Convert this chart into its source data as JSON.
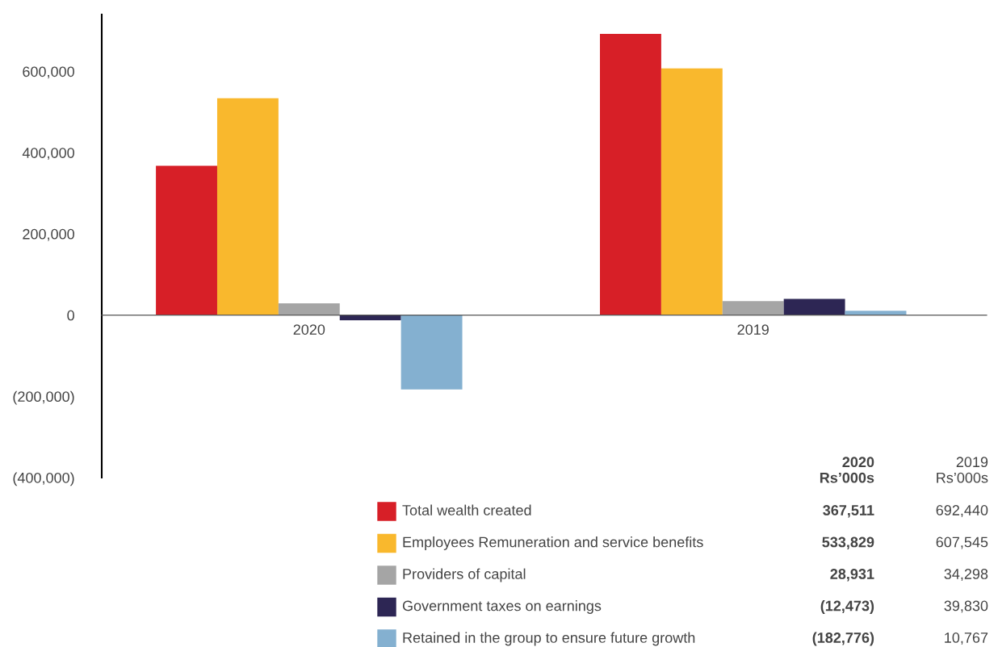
{
  "chart_data": {
    "type": "bar",
    "categories": [
      "2020",
      "2019"
    ],
    "series": [
      {
        "name": "Total wealth created",
        "color": "#d71f27",
        "values": [
          367511,
          692440
        ]
      },
      {
        "name": "Employees Remuneration and service benefits",
        "color": "#f9b82d",
        "values": [
          533829,
          607545
        ]
      },
      {
        "name": "Providers of capital",
        "color": "#a5a5a5",
        "values": [
          28931,
          34298
        ]
      },
      {
        "name": "Government taxes on earnings",
        "color": "#2d2654",
        "values": [
          -12473,
          39830
        ]
      },
      {
        "name": "Retained in the group to ensure future growth",
        "color": "#84b0d0",
        "values": [
          -182776,
          10767
        ]
      }
    ],
    "annotations": [
      "2020\nRs’000s",
      "2019\nRs’000s",
      "367,511",
      "692,440",
      "533,829",
      "607,545",
      "28,931",
      "34,298",
      "(12,473)",
      "39,830",
      "(182,776)",
      "10,767"
    ],
    "ylim": [
      -400000,
      740000
    ],
    "yticks": [
      {
        "value": -400000,
        "label": "(400,000)"
      },
      {
        "value": -200000,
        "label": "(200,000)"
      },
      0,
      {
        "value": 200000,
        "label": "200,000"
      },
      {
        "value": 400000,
        "label": "400,000"
      },
      {
        "value": 600000,
        "label": "600,000"
      }
    ],
    "grid": false,
    "legend": "bottom"
  }
}
